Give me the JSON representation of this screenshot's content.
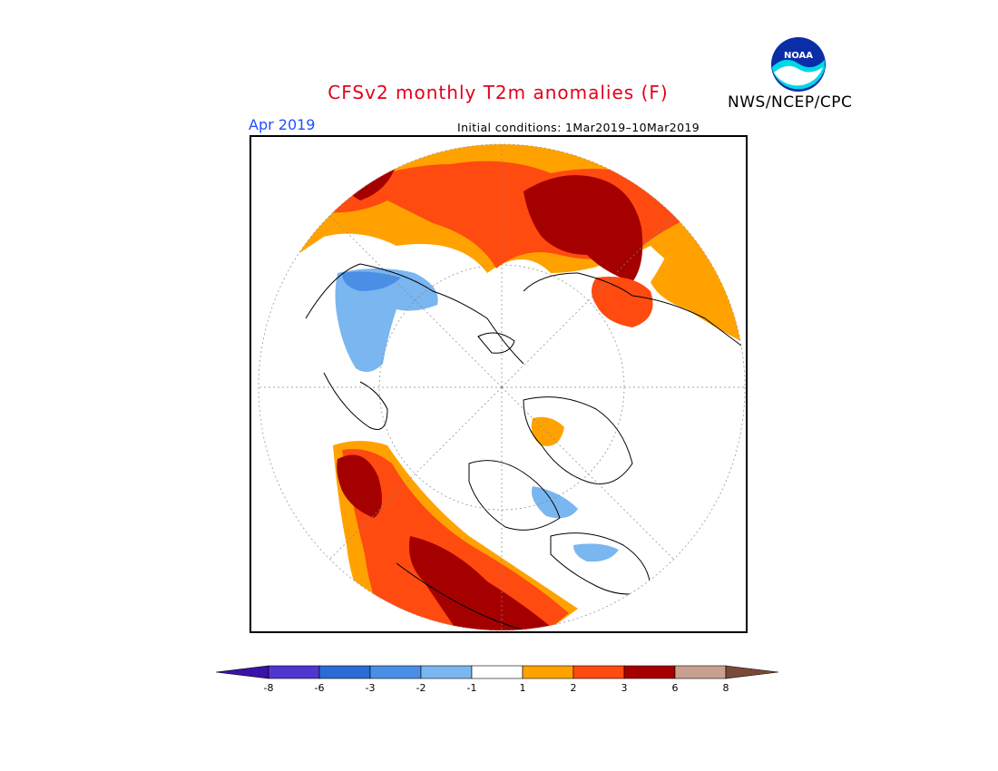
{
  "header": {
    "title": "CFSv2 monthly T2m anomalies (F)",
    "agency": "NWS/NCEP/CPC",
    "logo_text": "NOAA",
    "month": "Apr 2019",
    "initial_conditions": "Initial conditions: 1Mar2019–10Mar2019"
  },
  "map": {
    "projection": "north-polar-stereographic",
    "variable": "T2m anomaly",
    "units": "F"
  },
  "colorbar": {
    "labels": [
      "-8",
      "-6",
      "-3",
      "-2",
      "-1",
      "1",
      "2",
      "3",
      "6",
      "8"
    ],
    "colors": [
      "#3a13a8",
      "#5035d0",
      "#2a6bd6",
      "#4a8fe6",
      "#7ab6ef",
      "#ffffff",
      "#ffa200",
      "#ff4a10",
      "#a50000",
      "#c8a090",
      "#7a4a38"
    ],
    "colors_note": "first = below -8 arrow, last = above 8 arrow"
  }
}
